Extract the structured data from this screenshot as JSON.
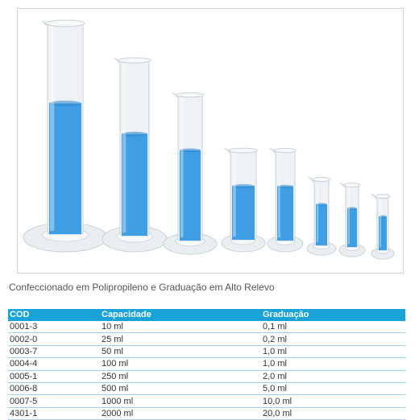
{
  "image": {
    "subject": "graduated-cylinders",
    "colors": {
      "plastic": "#eef2f4",
      "plastic_edge": "#c8d2d8",
      "liquid": "#3f9ee4",
      "liquid_dark": "#2f86cc",
      "base": "#e9eef1"
    },
    "liquid_levels": [
      0.62,
      0.58,
      0.62,
      0.6,
      0.6,
      0.62,
      0.62,
      0.62
    ]
  },
  "caption": "Confeccionado em Polipropileno e Graduação em Alto Relevo",
  "table": {
    "headers": [
      "COD",
      "Capacidade",
      "Graduação"
    ],
    "rows": [
      [
        "0001-3",
        "10 ml",
        "0,1 ml"
      ],
      [
        "0002-0",
        "25 ml",
        "0,2 ml"
      ],
      [
        "0003-7",
        "50 ml",
        "1,0 ml"
      ],
      [
        "0004-4",
        "100 ml",
        "1,0 ml"
      ],
      [
        "0005-1",
        "250 ml",
        "2,0 ml"
      ],
      [
        "0006-8",
        "500 ml",
        "5,0 ml"
      ],
      [
        "0007-5",
        "1000 ml",
        "10,0 ml"
      ],
      [
        "4301-1",
        "2000 ml",
        "20,0 ml"
      ]
    ]
  }
}
